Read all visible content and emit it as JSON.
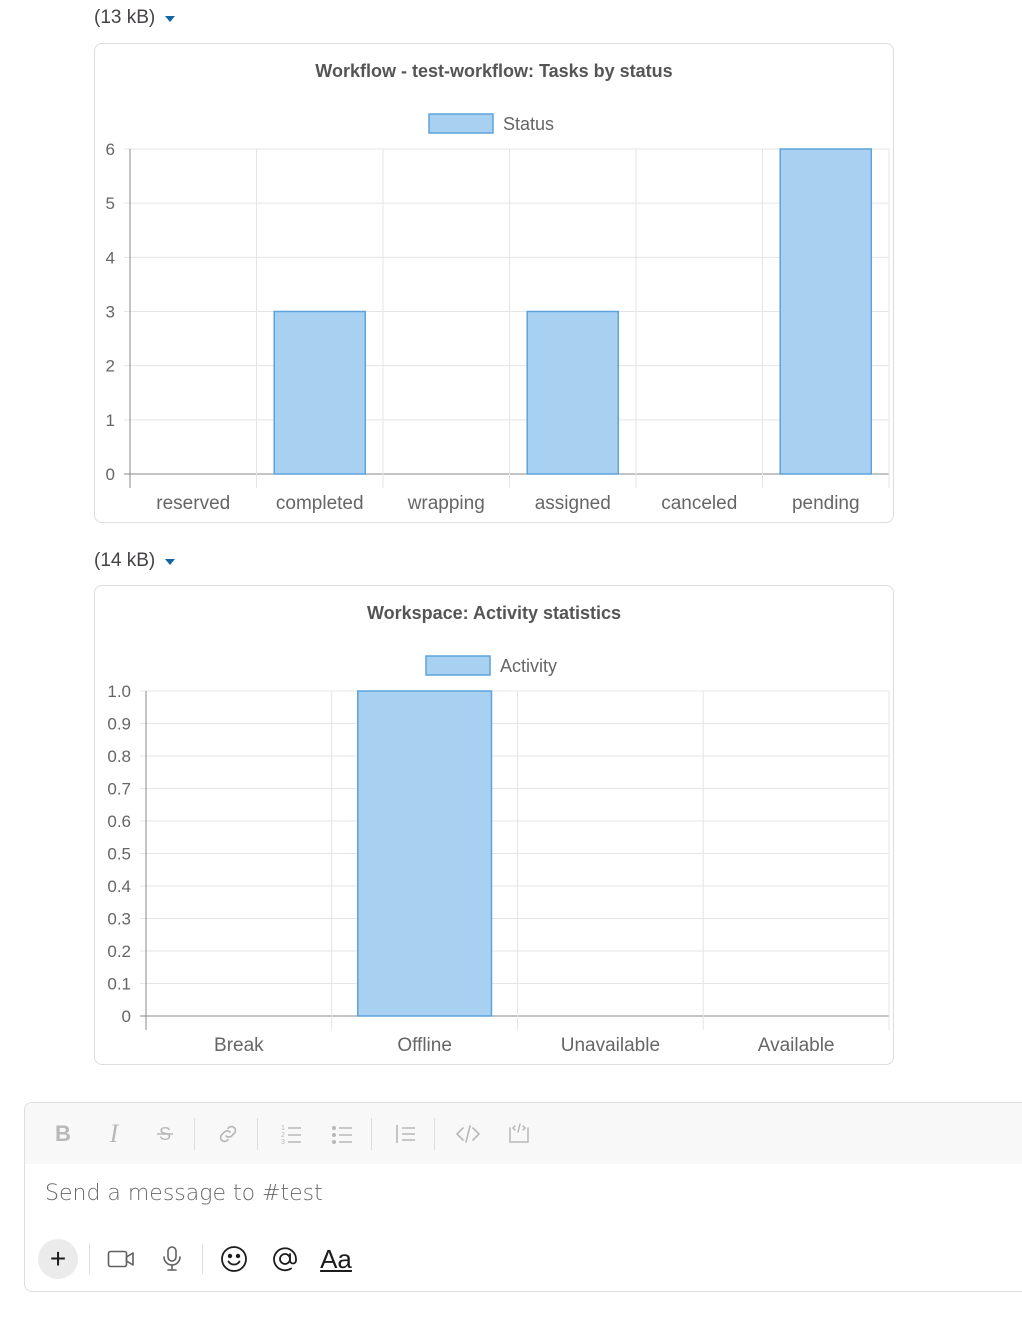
{
  "files": [
    {
      "size_label": "(13 kB)"
    },
    {
      "size_label": "(14 kB)"
    }
  ],
  "chart_data": [
    {
      "type": "bar",
      "title": "Workflow - test-workflow: Tasks by status",
      "categories": [
        "reserved",
        "completed",
        "wrapping",
        "assigned",
        "canceled",
        "pending"
      ],
      "series": [
        {
          "name": "Status",
          "values": [
            0,
            3,
            0,
            3,
            0,
            6
          ]
        }
      ],
      "yticks": [
        "0",
        "1",
        "2",
        "3",
        "4",
        "5",
        "6"
      ],
      "ylim": [
        0,
        6
      ],
      "grid": true,
      "legend": "top-center",
      "colors": {
        "fill": "#a8d0f0",
        "stroke": "#5ea3dc"
      }
    },
    {
      "type": "bar",
      "title": "Workspace: Activity statistics",
      "categories": [
        "Break",
        "Offline",
        "Unavailable",
        "Available"
      ],
      "series": [
        {
          "name": "Activity",
          "values": [
            0,
            1,
            0,
            0
          ]
        }
      ],
      "yticks": [
        "0",
        "0.1",
        "0.2",
        "0.3",
        "0.4",
        "0.5",
        "0.6",
        "0.7",
        "0.8",
        "0.9",
        "1.0"
      ],
      "ylim": [
        0,
        1
      ],
      "grid": true,
      "legend": "top-center",
      "colors": {
        "fill": "#a8d0f0",
        "stroke": "#5ea3dc"
      }
    }
  ],
  "composer": {
    "placeholder": "Send a message to #test",
    "aa_label": "Aa",
    "plus_label": "+",
    "format_icons": [
      "bold-icon",
      "italic-icon",
      "strikethrough-icon",
      "link-icon",
      "ordered-list-icon",
      "bulleted-list-icon",
      "blockquote-icon",
      "code-icon",
      "code-block-icon"
    ],
    "bottom_icons": [
      "plus-icon",
      "video-icon",
      "microphone-icon",
      "emoji-icon",
      "mention-icon",
      "text-format-icon"
    ]
  }
}
